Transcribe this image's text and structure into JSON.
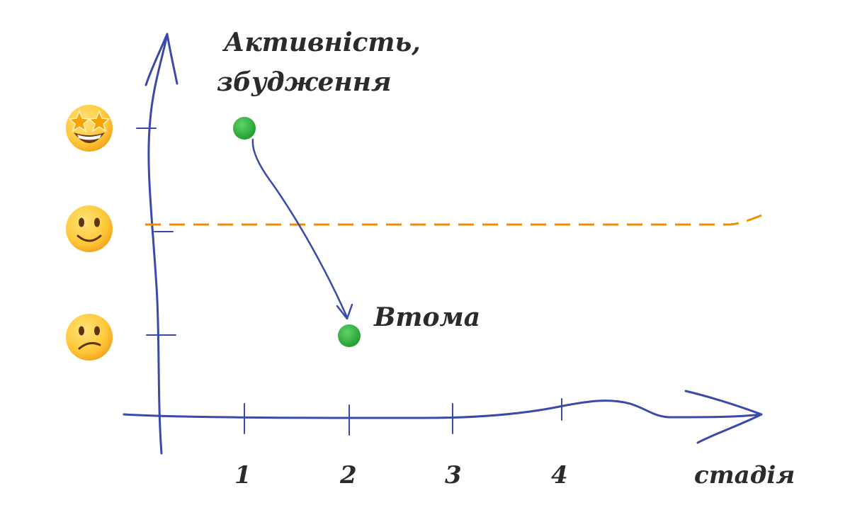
{
  "y_axis_label_line1": "Активність,",
  "y_axis_label_line2": "збудження",
  "x_axis_label": "стадія",
  "x_ticks": [
    "1",
    "2",
    "3",
    "4"
  ],
  "y_levels": [
    {
      "level": "excited",
      "icon": "star-struck-face-icon"
    },
    {
      "level": "neutral",
      "icon": "slightly-smiling-face-icon"
    },
    {
      "level": "tired",
      "icon": "confused-face-icon"
    }
  ],
  "points": [
    {
      "stage": 1,
      "level": "excited"
    },
    {
      "stage": 2,
      "level": "tired",
      "label": "Втома"
    }
  ],
  "baseline_level": "neutral",
  "colors": {
    "axis": "#3a4aa8",
    "point": "#22a832",
    "baseline": "#f08c00",
    "text": "#2b2b2b"
  }
}
